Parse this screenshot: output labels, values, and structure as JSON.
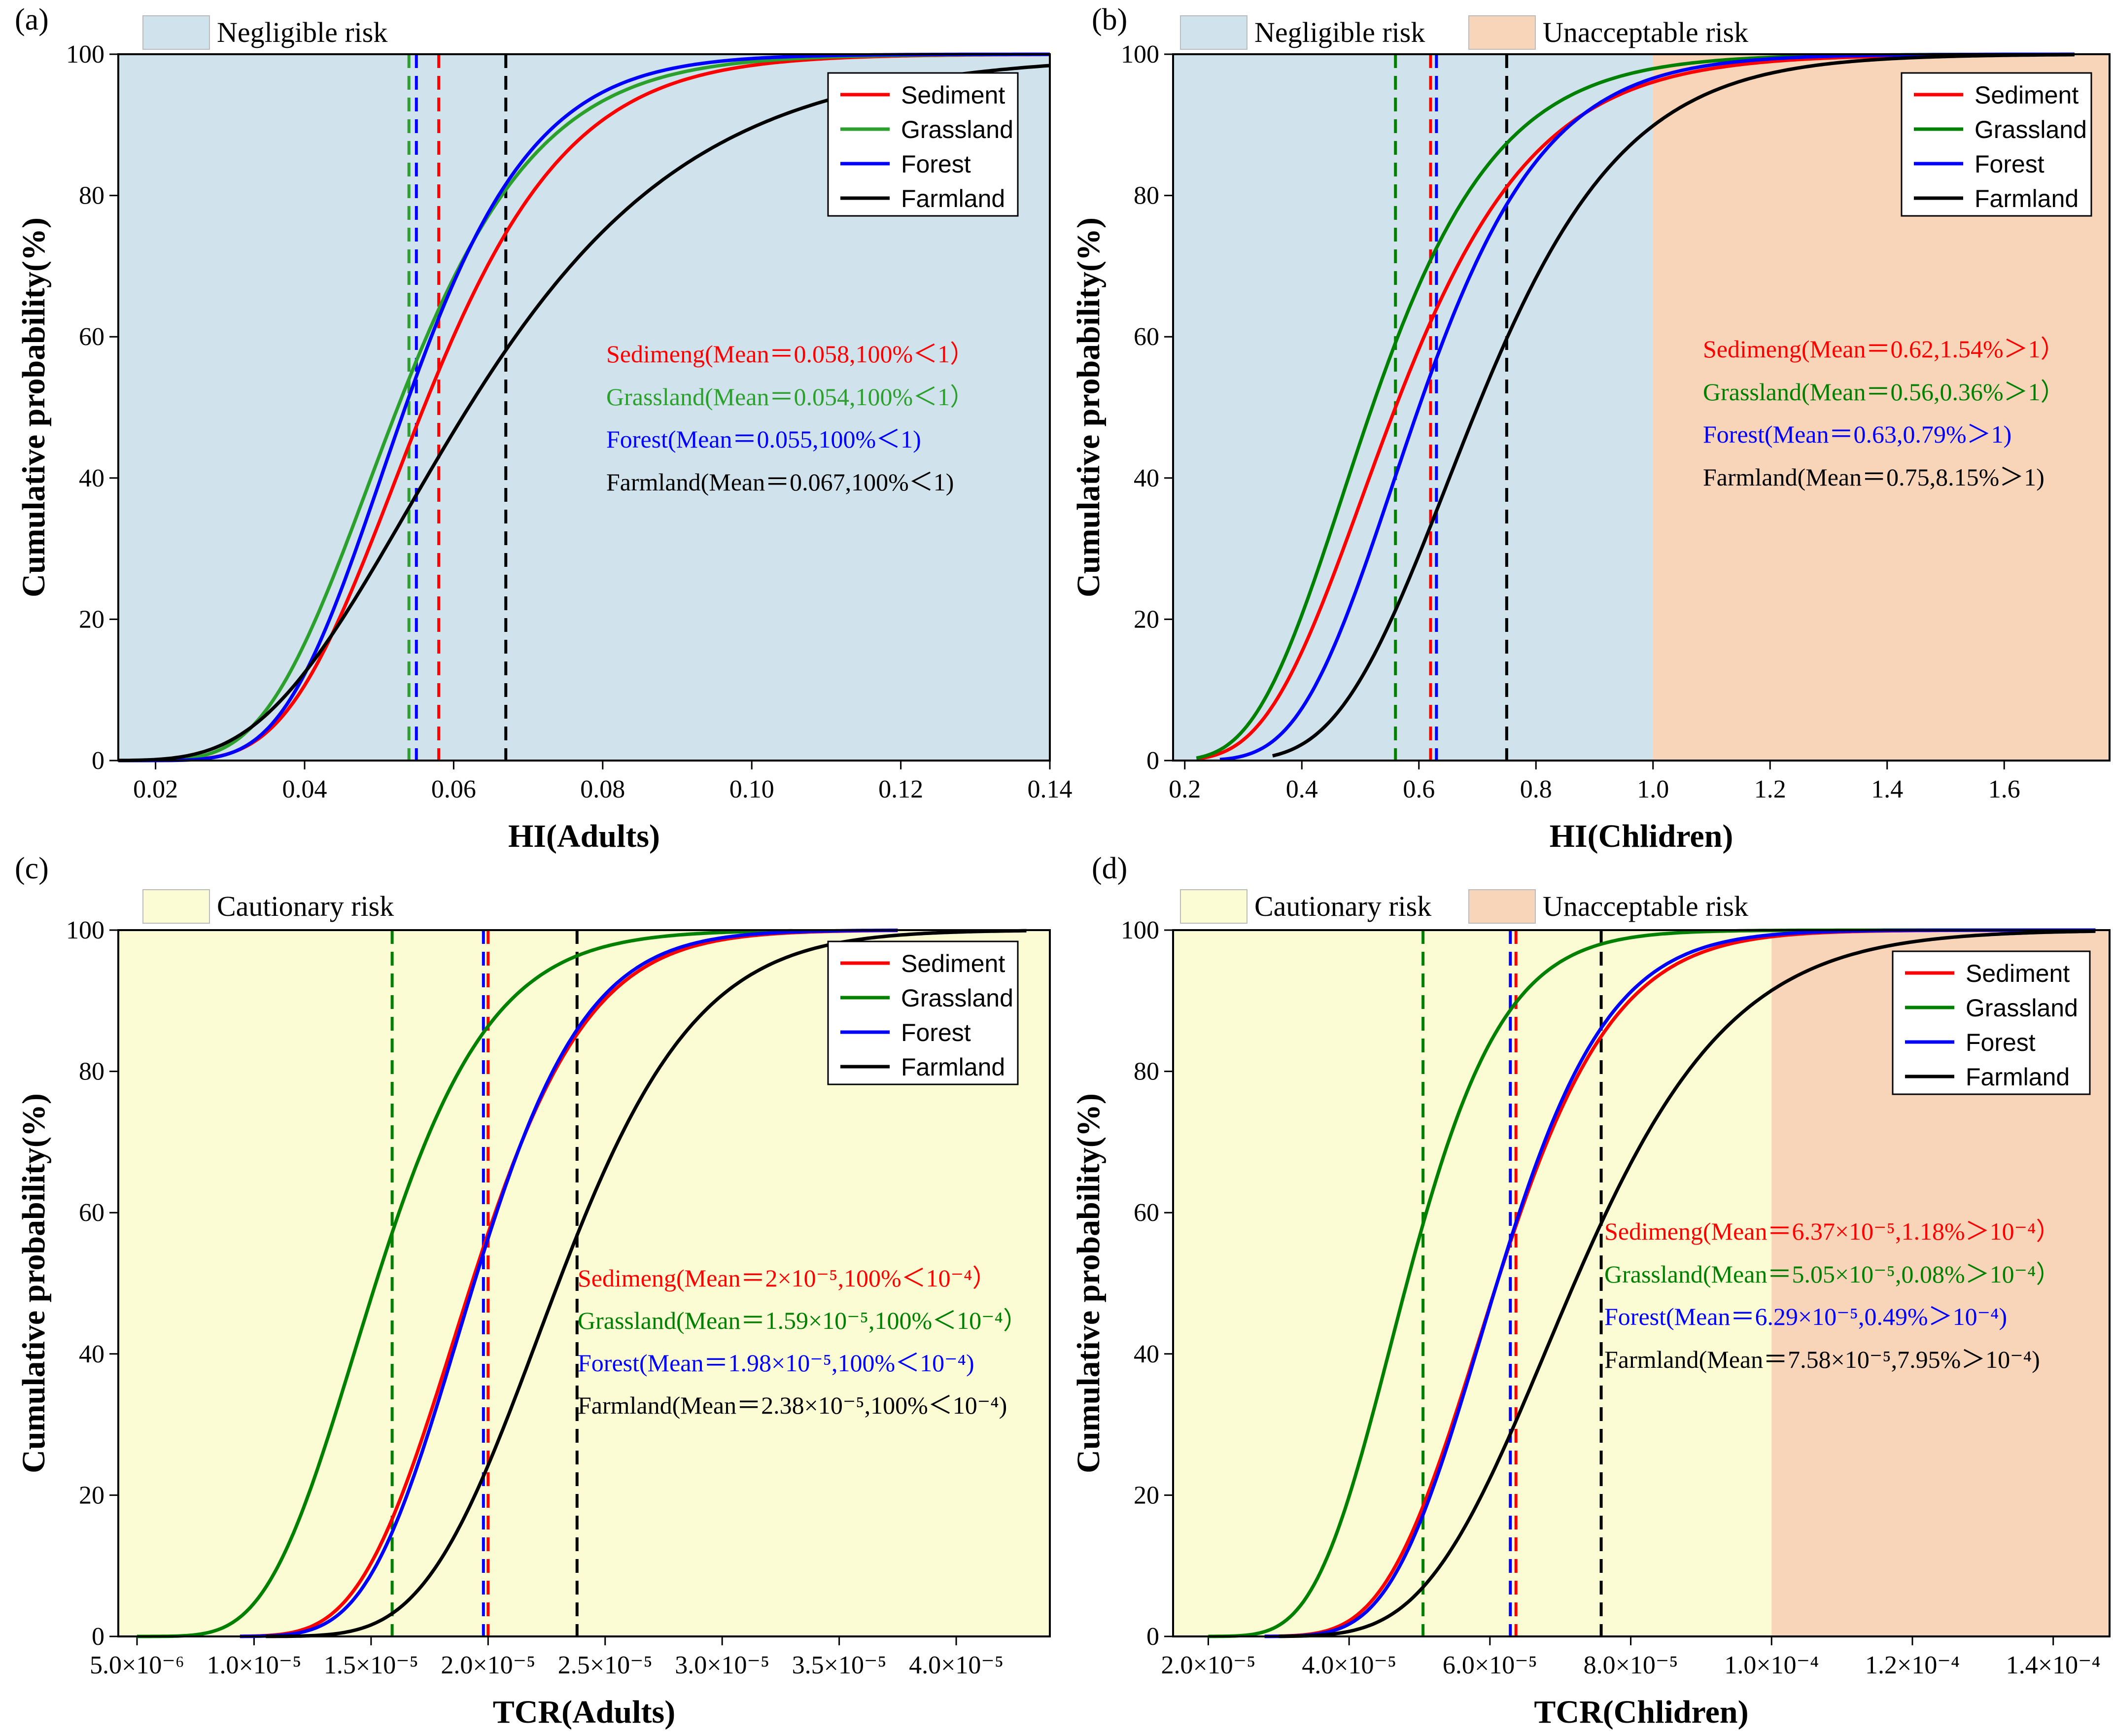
{
  "chart_data": [
    {
      "panel": "(a)",
      "type": "line",
      "xlabel": "HI(Adults)",
      "ylabel": "Cumulative probability(%)",
      "xlim": [
        0.015,
        0.14
      ],
      "ylim": [
        0,
        100
      ],
      "xticks": [
        {
          "v": 0.02,
          "label": "0.02"
        },
        {
          "v": 0.04,
          "label": "0.04"
        },
        {
          "v": 0.06,
          "label": "0.06"
        },
        {
          "v": 0.08,
          "label": "0.08"
        },
        {
          "v": 0.1,
          "label": "0.10"
        },
        {
          "v": 0.12,
          "label": "0.12"
        },
        {
          "v": 0.14,
          "label": "0.14"
        }
      ],
      "yticks": [
        {
          "v": 0,
          "label": "0"
        },
        {
          "v": 20,
          "label": "20"
        },
        {
          "v": 40,
          "label": "40"
        },
        {
          "v": 60,
          "label": "60"
        },
        {
          "v": 80,
          "label": "80"
        },
        {
          "v": 100,
          "label": "100"
        }
      ],
      "regions": [
        {
          "from": 0.015,
          "to": 0.14,
          "color": "#d0e3ec",
          "label": "Negligible risk"
        }
      ],
      "legend": [
        "Sediment",
        "Grassland",
        "Forest",
        "Farmland"
      ],
      "series": [
        {
          "name": "Sediment",
          "color": "#ff0000",
          "mean": 0.058,
          "median": 0.056,
          "sigma": 0.27,
          "start": 0.015,
          "end": 0.14
        },
        {
          "name": "Grassland",
          "color": "#2ca02c",
          "mean": 0.054,
          "median": 0.0525,
          "sigma": 0.28,
          "start": 0.015,
          "end": 0.14
        },
        {
          "name": "Forest",
          "color": "#0000ff",
          "mean": 0.055,
          "median": 0.0535,
          "sigma": 0.25,
          "start": 0.015,
          "end": 0.14
        },
        {
          "name": "Farmland",
          "color": "#000000",
          "mean": 0.067,
          "median": 0.062,
          "sigma": 0.38,
          "start": 0.015,
          "end": 0.14
        }
      ],
      "annotations": [
        {
          "text": "Sedimeng(Mean＝0.058,100%＜1）",
          "color": "#ff0000"
        },
        {
          "text": "Grassland(Mean＝0.054,100%＜1）",
          "color": "#2ca02c"
        },
        {
          "text": "Forest(Mean＝0.055,100%＜1)",
          "color": "#0000ff"
        },
        {
          "text": "Farmland(Mean＝0.067,100%＜1)",
          "color": "#000000"
        }
      ]
    },
    {
      "panel": "(b)",
      "type": "line",
      "xlabel": "HI(Chlidren)",
      "ylabel": "Cumulative probability(%)",
      "xlim": [
        0.18,
        1.78
      ],
      "ylim": [
        0,
        100
      ],
      "xticks": [
        {
          "v": 0.2,
          "label": "0.2"
        },
        {
          "v": 0.4,
          "label": "0.4"
        },
        {
          "v": 0.6,
          "label": "0.6"
        },
        {
          "v": 0.8,
          "label": "0.8"
        },
        {
          "v": 1.0,
          "label": "1.0"
        },
        {
          "v": 1.2,
          "label": "1.2"
        },
        {
          "v": 1.4,
          "label": "1.4"
        },
        {
          "v": 1.6,
          "label": "1.6"
        }
      ],
      "yticks": [
        {
          "v": 0,
          "label": "0"
        },
        {
          "v": 20,
          "label": "20"
        },
        {
          "v": 40,
          "label": "40"
        },
        {
          "v": 60,
          "label": "60"
        },
        {
          "v": 80,
          "label": "80"
        },
        {
          "v": 100,
          "label": "100"
        }
      ],
      "regions": [
        {
          "from": 0.18,
          "to": 1.0,
          "color": "#d0e3ec",
          "label": "Negligible risk"
        },
        {
          "from": 1.0,
          "to": 1.78,
          "color": "#f8d5b8",
          "label": "Unacceptable risk"
        }
      ],
      "legend": [
        "Sediment",
        "Grassland",
        "Forest",
        "Farmland"
      ],
      "series": [
        {
          "name": "Sediment",
          "color": "#ff0000",
          "mean": 0.62,
          "median": 0.56,
          "sigma": 0.33,
          "start": 0.22,
          "end": 1.72
        },
        {
          "name": "Grassland",
          "color": "#008000",
          "mean": 0.56,
          "median": 0.52,
          "sigma": 0.32,
          "start": 0.22,
          "end": 1.72
        },
        {
          "name": "Forest",
          "color": "#0000ff",
          "mean": 0.63,
          "median": 0.6,
          "sigma": 0.28,
          "start": 0.26,
          "end": 1.72
        },
        {
          "name": "Farmland",
          "color": "#000000",
          "mean": 0.75,
          "median": 0.7,
          "sigma": 0.28,
          "start": 0.35,
          "end": 1.72
        }
      ],
      "annotations": [
        {
          "text": "Sedimeng(Mean＝0.62,1.54%＞1）",
          "color": "#ff0000"
        },
        {
          "text": "Grassland(Mean＝0.56,0.36%＞1）",
          "color": "#008000"
        },
        {
          "text": "Forest(Mean＝0.63,0.79%＞1)",
          "color": "#0000ff"
        },
        {
          "text": "Farmland(Mean＝0.75,8.15%＞1)",
          "color": "#000000"
        }
      ]
    },
    {
      "panel": "(c)",
      "type": "line",
      "xlabel": "TCR(Adults)",
      "ylabel": "Cumulative probability(%)",
      "xlim": [
        4.2e-06,
        4.4e-05
      ],
      "ylim": [
        0,
        100
      ],
      "xticks": [
        {
          "v": 5e-06,
          "label": "5.0×10⁻⁶"
        },
        {
          "v": 1e-05,
          "label": "1.0×10⁻⁵"
        },
        {
          "v": 1.5e-05,
          "label": "1.5×10⁻⁵"
        },
        {
          "v": 2e-05,
          "label": "2.0×10⁻⁵"
        },
        {
          "v": 2.5e-05,
          "label": "2.5×10⁻⁵"
        },
        {
          "v": 3e-05,
          "label": "3.0×10⁻⁵"
        },
        {
          "v": 3.5e-05,
          "label": "3.5×10⁻⁵"
        },
        {
          "v": 4e-05,
          "label": "4.0×10⁻⁵"
        }
      ],
      "yticks": [
        {
          "v": 0,
          "label": "0"
        },
        {
          "v": 20,
          "label": "20"
        },
        {
          "v": 40,
          "label": "40"
        },
        {
          "v": 60,
          "label": "60"
        },
        {
          "v": 80,
          "label": "80"
        },
        {
          "v": 100,
          "label": "100"
        }
      ],
      "regions": [
        {
          "from": 4.2e-06,
          "to": 4.4e-05,
          "color": "#fcfcd4",
          "label": "Cautionary risk"
        }
      ],
      "legend": [
        "Sediment",
        "Grassland",
        "Forest",
        "Farmland"
      ],
      "series": [
        {
          "name": "Sediment",
          "color": "#ff0000",
          "mean": 2e-05,
          "median": 1.93e-05,
          "sigma": 0.2,
          "start": 9.4e-06,
          "end": 3.75e-05
        },
        {
          "name": "Grassland",
          "color": "#008000",
          "mean": 1.59e-05,
          "median": 1.52e-05,
          "sigma": 0.25,
          "start": 5e-06,
          "end": 3.3e-05
        },
        {
          "name": "Forest",
          "color": "#0000ff",
          "mean": 1.98e-05,
          "median": 1.94e-05,
          "sigma": 0.19,
          "start": 9.4e-06,
          "end": 3.75e-05
        },
        {
          "name": "Farmland",
          "color": "#000000",
          "mean": 2.38e-05,
          "median": 2.3e-05,
          "sigma": 0.2,
          "start": 1.05e-05,
          "end": 4.3e-05
        }
      ],
      "annotations": [
        {
          "text": "Sedimeng(Mean＝2×10⁻⁵,100%＜10⁻⁴）",
          "color": "#ff0000"
        },
        {
          "text": "Grassland(Mean＝1.59×10⁻⁵,100%＜10⁻⁴）",
          "color": "#008000"
        },
        {
          "text": "Forest(Mean＝1.98×10⁻⁵,100%＜10⁻⁴)",
          "color": "#0000ff"
        },
        {
          "text": "Farmland(Mean＝2.38×10⁻⁵,100%＜10⁻⁴)",
          "color": "#000000"
        }
      ]
    },
    {
      "panel": "(d)",
      "type": "line",
      "xlabel": "TCR(Chlidren)",
      "ylabel": "Cumulative probability(%)",
      "xlim": [
        1.5e-05,
        0.000148
      ],
      "ylim": [
        0,
        100
      ],
      "xticks": [
        {
          "v": 2e-05,
          "label": "2.0×10⁻⁵"
        },
        {
          "v": 4e-05,
          "label": "4.0×10⁻⁵"
        },
        {
          "v": 6e-05,
          "label": "6.0×10⁻⁵"
        },
        {
          "v": 8e-05,
          "label": "8.0×10⁻⁵"
        },
        {
          "v": 0.0001,
          "label": "1.0×10⁻⁴"
        },
        {
          "v": 0.00012,
          "label": "1.2×10⁻⁴"
        },
        {
          "v": 0.00014,
          "label": "1.4×10⁻⁴"
        }
      ],
      "yticks": [
        {
          "v": 0,
          "label": "0"
        },
        {
          "v": 20,
          "label": "20"
        },
        {
          "v": 40,
          "label": "40"
        },
        {
          "v": 60,
          "label": "60"
        },
        {
          "v": 80,
          "label": "80"
        },
        {
          "v": 100,
          "label": "100"
        }
      ],
      "regions": [
        {
          "from": 1.5e-05,
          "to": 0.0001,
          "color": "#fcfcd4",
          "label": "Cautionary risk"
        },
        {
          "from": 0.0001,
          "to": 0.000148,
          "color": "#f8d5b8",
          "label": "Unacceptable risk"
        }
      ],
      "legend": [
        "Sediment",
        "Grassland",
        "Forest",
        "Farmland"
      ],
      "series": [
        {
          "name": "Sediment",
          "color": "#ff0000",
          "mean": 6.37e-05,
          "median": 6.1e-05,
          "sigma": 0.21,
          "start": 2.8e-05,
          "end": 0.000146
        },
        {
          "name": "Grassland",
          "color": "#008000",
          "mean": 5.05e-05,
          "median": 4.82e-05,
          "sigma": 0.22,
          "start": 2e-05,
          "end": 0.000146
        },
        {
          "name": "Forest",
          "color": "#0000ff",
          "mean": 6.29e-05,
          "median": 6.1e-05,
          "sigma": 0.2,
          "start": 2.8e-05,
          "end": 0.000146
        },
        {
          "name": "Farmland",
          "color": "#000000",
          "mean": 7.58e-05,
          "median": 7.2e-05,
          "sigma": 0.24,
          "start": 3e-05,
          "end": 0.000146
        }
      ],
      "annotations": [
        {
          "text": "Sedimeng(Mean＝6.37×10⁻⁵,1.18%＞10⁻⁴）",
          "color": "#ff0000"
        },
        {
          "text": "Grassland(Mean＝5.05×10⁻⁵,0.08%＞10⁻⁴）",
          "color": "#008000"
        },
        {
          "text": "Forest(Mean＝6.29×10⁻⁵,0.49%＞10⁻⁴)",
          "color": "#0000ff"
        },
        {
          "text": "Farmland(Mean＝7.58×10⁻⁵,7.95%＞10⁻⁴)",
          "color": "#000000"
        }
      ]
    }
  ]
}
